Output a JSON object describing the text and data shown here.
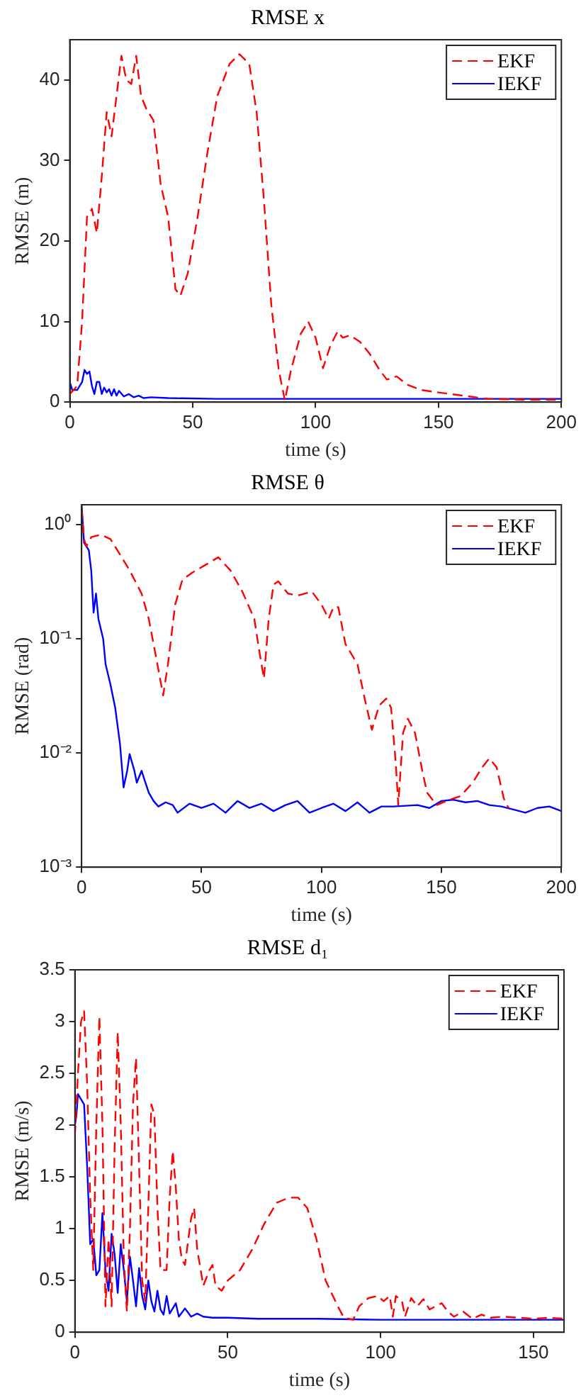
{
  "chart_data": [
    {
      "type": "line",
      "title": "RMSE x",
      "xlabel": "time (s)",
      "ylabel": "RMSE (m)",
      "xlim": [
        0,
        200
      ],
      "xticks": [
        0,
        50,
        100,
        150,
        200
      ],
      "ylim": [
        0,
        45
      ],
      "yticks": [
        0,
        10,
        20,
        30,
        40
      ],
      "grid": false,
      "legend": "top right",
      "series": [
        {
          "name": "EKF",
          "color": "#ff0000",
          "line_style": "dashed",
          "x": [
            0,
            3,
            5,
            7,
            9,
            11,
            13,
            15,
            17,
            19,
            21,
            23,
            25,
            27,
            29,
            31,
            34,
            37,
            40,
            43,
            45,
            48,
            52,
            56,
            60,
            65,
            69,
            73,
            76,
            79,
            82,
            85,
            87.5,
            90,
            94,
            97,
            100,
            103,
            106,
            109,
            111,
            114,
            118,
            122,
            126,
            129,
            133,
            137,
            143,
            150,
            160,
            170,
            185,
            200
          ],
          "values": [
            1,
            2,
            10,
            23,
            24,
            21,
            28,
            36,
            33,
            38,
            43,
            40,
            39.5,
            43,
            38,
            36.5,
            35,
            27,
            23,
            14,
            13.2,
            16,
            23,
            31,
            38,
            42,
            43.2,
            42,
            36,
            25,
            12,
            4,
            0.2,
            4,
            8.5,
            10,
            8,
            4.2,
            7,
            8.8,
            8,
            8.3,
            7.5,
            6,
            4,
            2.8,
            3.2,
            2.2,
            1.5,
            1.2,
            0.8,
            0.4,
            0.3,
            0.3
          ]
        },
        {
          "name": "IEKF",
          "color": "#0000ff",
          "line_style": "solid",
          "x": [
            0,
            1,
            3,
            5,
            6,
            7,
            8,
            9,
            10,
            11,
            12,
            13,
            14,
            15,
            16,
            17,
            18,
            19,
            20,
            22,
            24,
            26,
            28,
            30,
            33,
            40,
            60,
            100,
            150,
            200
          ],
          "values": [
            2.5,
            1.5,
            1.5,
            2.5,
            4,
            3.5,
            3.8,
            2,
            1,
            2.5,
            2.5,
            1,
            1.8,
            1.2,
            1.6,
            0.8,
            1.6,
            0.8,
            1.4,
            0.7,
            1,
            0.6,
            0.8,
            0.5,
            0.6,
            0.5,
            0.4,
            0.4,
            0.4,
            0.4
          ]
        }
      ]
    },
    {
      "type": "line",
      "title": "RMSE θ",
      "xlabel": "time (s)",
      "ylabel": "RMSE (rad)",
      "log": "y",
      "xlim": [
        0,
        200
      ],
      "xticks": [
        0,
        50,
        100,
        150,
        200
      ],
      "ylim": [
        0.001,
        1.5
      ],
      "yticks": [
        {
          "value": 0.001,
          "label": "10⁻³"
        },
        {
          "value": 0.01,
          "label": "10⁻²"
        },
        {
          "value": 0.1,
          "label": "10⁻¹"
        },
        {
          "value": 1,
          "label": "10⁰"
        }
      ],
      "grid": false,
      "legend": "top right",
      "series": [
        {
          "name": "EKF",
          "color": "#ff0000",
          "line_style": "dashed",
          "x": [
            0,
            1,
            2,
            4,
            8,
            12,
            16,
            20,
            25,
            28,
            31,
            34,
            36,
            39,
            42,
            46,
            52,
            57,
            62,
            67,
            72,
            74,
            76,
            78,
            80,
            82,
            86,
            90,
            96,
            100,
            103,
            105,
            107,
            110,
            115,
            118,
            121,
            124,
            127,
            129,
            131,
            132,
            134,
            136,
            139,
            142,
            144,
            148,
            152,
            158,
            163,
            167,
            170,
            173,
            176,
            178
          ],
          "values": [
            1.4,
            0.75,
            0.65,
            0.78,
            0.82,
            0.75,
            0.55,
            0.4,
            0.25,
            0.15,
            0.07,
            0.032,
            0.06,
            0.2,
            0.33,
            0.38,
            0.45,
            0.52,
            0.4,
            0.26,
            0.15,
            0.08,
            0.045,
            0.15,
            0.3,
            0.32,
            0.25,
            0.24,
            0.26,
            0.2,
            0.15,
            0.19,
            0.19,
            0.09,
            0.06,
            0.03,
            0.016,
            0.026,
            0.03,
            0.025,
            0.008,
            0.0035,
            0.015,
            0.02,
            0.015,
            0.007,
            0.0045,
            0.0035,
            0.0038,
            0.0042,
            0.0055,
            0.0075,
            0.009,
            0.0075,
            0.004,
            0.0033
          ]
        },
        {
          "name": "IEKF",
          "color": "#0000ff",
          "line_style": "solid",
          "x": [
            0,
            1,
            3,
            4,
            5,
            6,
            7,
            9,
            10,
            12,
            14,
            16,
            17.5,
            19,
            20,
            22,
            23,
            25,
            26,
            28,
            30,
            32,
            35,
            38,
            40,
            45,
            50,
            55,
            60,
            65,
            70,
            75,
            80,
            85,
            90,
            95,
            100,
            105,
            110,
            115,
            120,
            125,
            130,
            140,
            145,
            150,
            155,
            160,
            165,
            170,
            175,
            180,
            185,
            190,
            195,
            200
          ],
          "values": [
            1.5,
            0.7,
            0.6,
            0.4,
            0.17,
            0.25,
            0.15,
            0.1,
            0.06,
            0.04,
            0.025,
            0.012,
            0.005,
            0.007,
            0.0098,
            0.007,
            0.0055,
            0.007,
            0.006,
            0.0045,
            0.0038,
            0.0034,
            0.0037,
            0.0035,
            0.003,
            0.0036,
            0.0033,
            0.0036,
            0.003,
            0.0038,
            0.0033,
            0.0036,
            0.0031,
            0.0035,
            0.0038,
            0.003,
            0.0033,
            0.0036,
            0.0031,
            0.0037,
            0.003,
            0.0034,
            0.0034,
            0.0035,
            0.0033,
            0.0038,
            0.0039,
            0.0037,
            0.0038,
            0.0035,
            0.0034,
            0.0032,
            0.003,
            0.0033,
            0.0034,
            0.0031
          ]
        }
      ]
    },
    {
      "type": "line",
      "title": "RMSE d₁",
      "xlabel": "time (s)",
      "ylabel": "RMSE (m/s)",
      "xlim": [
        0,
        160
      ],
      "xticks": [
        0,
        50,
        100,
        150
      ],
      "ylim": [
        0,
        3.5
      ],
      "yticks": [
        0,
        0.5,
        1,
        1.5,
        2,
        2.5,
        3,
        3.5
      ],
      "grid": false,
      "legend": "top right",
      "series": [
        {
          "name": "EKF",
          "color": "#ff0000",
          "line_style": "dashed",
          "x": [
            0,
            1,
            2,
            3,
            4,
            5,
            6,
            7,
            8,
            9,
            10,
            11,
            12,
            13,
            14,
            15,
            16,
            17,
            18,
            19,
            20,
            21,
            22,
            23,
            24,
            25,
            26,
            27,
            28,
            30,
            31,
            32,
            33,
            34,
            35,
            36,
            38,
            39,
            40,
            42,
            44,
            45,
            46,
            48,
            50,
            54,
            58,
            62,
            66,
            70,
            73,
            76,
            79,
            82,
            86,
            88,
            91,
            93,
            96,
            99,
            101,
            103,
            104,
            105,
            107,
            108,
            110,
            112,
            114,
            116,
            118,
            120,
            122,
            124,
            127,
            130,
            133,
            136,
            140,
            145,
            150,
            155,
            160
          ],
          "values": [
            1.9,
            2.5,
            3.0,
            3.1,
            2.4,
            1.3,
            0.6,
            2.0,
            3.05,
            2.0,
            0.25,
            0.9,
            0.25,
            1.8,
            2.9,
            2.0,
            0.7,
            0.2,
            1.0,
            2.2,
            2.65,
            1.6,
            0.5,
            0.3,
            1.2,
            2.2,
            2.1,
            1.2,
            0.6,
            0.6,
            1.3,
            1.75,
            1.4,
            0.9,
            0.7,
            0.65,
            1.1,
            1.2,
            0.8,
            0.45,
            0.6,
            0.65,
            0.45,
            0.4,
            0.5,
            0.6,
            0.8,
            1.05,
            1.25,
            1.3,
            1.3,
            1.2,
            0.9,
            0.5,
            0.25,
            0.14,
            0.12,
            0.25,
            0.33,
            0.35,
            0.3,
            0.35,
            0.15,
            0.35,
            0.3,
            0.15,
            0.33,
            0.25,
            0.32,
            0.22,
            0.25,
            0.28,
            0.2,
            0.15,
            0.2,
            0.13,
            0.17,
            0.14,
            0.15,
            0.14,
            0.13,
            0.14,
            0.13
          ]
        },
        {
          "name": "IEKF",
          "color": "#0000ff",
          "line_style": "solid",
          "x": [
            0,
            0.5,
            1,
            2,
            3,
            4,
            5,
            6,
            7,
            8,
            9,
            10,
            11,
            12,
            13,
            14,
            15,
            16,
            17,
            18,
            19,
            20,
            21,
            22,
            23,
            24,
            25,
            26,
            27,
            28,
            29,
            30,
            31,
            33,
            34,
            36,
            38,
            40,
            42,
            45,
            50,
            60,
            80,
            100,
            120,
            140,
            160
          ],
          "values": [
            2.0,
            2.1,
            2.3,
            2.25,
            2.2,
            1.6,
            0.85,
            0.9,
            0.55,
            0.6,
            1.15,
            0.6,
            0.4,
            0.95,
            0.75,
            0.38,
            0.85,
            0.6,
            0.3,
            0.73,
            0.5,
            0.25,
            0.62,
            0.35,
            0.22,
            0.5,
            0.3,
            0.2,
            0.4,
            0.22,
            0.17,
            0.35,
            0.18,
            0.28,
            0.15,
            0.23,
            0.15,
            0.18,
            0.15,
            0.14,
            0.14,
            0.13,
            0.13,
            0.12,
            0.12,
            0.12,
            0.12
          ]
        }
      ]
    }
  ]
}
